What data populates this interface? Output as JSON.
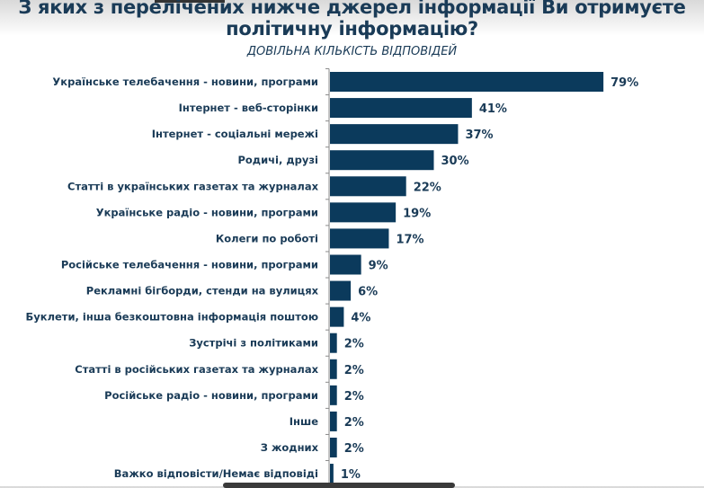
{
  "chart_data": {
    "type": "bar",
    "orientation": "horizontal",
    "title": "З яких з перелічених нижче джерел інформації Ви отримуєте політичну інформацію?",
    "subtitle": "ДОВІЛЬНА КІЛЬКІСТЬ ВІДПОВІДЕЙ",
    "categories": [
      "Українське телебачення - новини, програми",
      "Інтернет - веб-сторінки",
      "Інтернет - соціальні мережі",
      "Родичі, друзі",
      "Статті в українських газетах та журналах",
      "Українське радіо  - новини, програми",
      "Колеги по роботі",
      "Російське телебачення - новини, програми",
      "Рекламні бігборди, стенди на вулицях",
      "Буклети, інша безкоштовна інформація поштою",
      "Зустрічі з політиками",
      "Статті в російських газетах та журналах",
      "Російське радіо  - новини, програми",
      "Інше",
      "З жодних",
      "Важко відповісти/Немає відповіді"
    ],
    "values": [
      79,
      41,
      37,
      30,
      22,
      19,
      17,
      9,
      6,
      4,
      2,
      2,
      2,
      2,
      2,
      1
    ],
    "value_labels": [
      "79%",
      "41%",
      "37%",
      "30%",
      "22%",
      "19%",
      "17%",
      "9%",
      "6%",
      "4%",
      "2%",
      "2%",
      "2%",
      "2%",
      "2%",
      "1%"
    ],
    "xlim": [
      0,
      100
    ],
    "grid": false,
    "legend": "none",
    "bar_color": "#0b3a5c"
  }
}
